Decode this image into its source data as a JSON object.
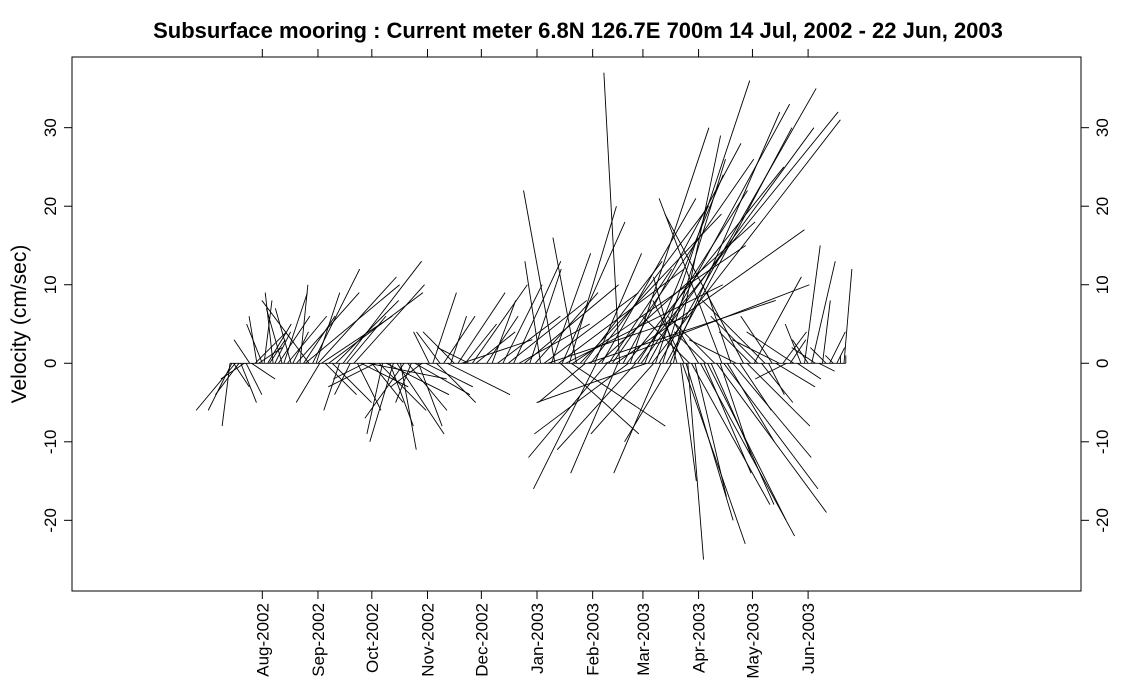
{
  "chart_data": {
    "type": "vector-stick-plot",
    "title": "Subsurface mooring : Current meter  6.8N 126.7E    700m   14 Jul, 2002 - 22 Jun, 2003",
    "xlabel": "",
    "ylabel": "Velocity (cm/sec)",
    "ylim": [
      -29,
      39
    ],
    "yticks": [
      -20,
      -10,
      0,
      10,
      20,
      30
    ],
    "ytick_labels": [
      "-20",
      "-10",
      "0",
      "10",
      "20",
      "30"
    ],
    "xlim": [
      "2002-04-17",
      "2003-10-31"
    ],
    "xticks": [
      "2002-08-01",
      "2002-09-01",
      "2002-10-01",
      "2002-11-01",
      "2002-12-01",
      "2003-01-01",
      "2003-02-01",
      "2003-03-01",
      "2003-04-01",
      "2003-05-01",
      "2003-06-01"
    ],
    "xtick_labels": [
      "Aug-2002",
      "Sep-2002",
      "Oct-2002",
      "Nov-2002",
      "Dec-2002",
      "Jan-2003",
      "Feb-2003",
      "Mar-2003",
      "Apr-2003",
      "May-2003",
      "Jun-2003"
    ],
    "grid": false,
    "sticks": [
      {
        "t": "2002-07-14",
        "u": -1,
        "v": -8
      },
      {
        "t": "2002-07-15",
        "u": -3,
        "v": -6
      },
      {
        "t": "2002-07-16",
        "u": 2,
        "v": -3
      },
      {
        "t": "2002-07-17",
        "u": -5,
        "v": -6
      },
      {
        "t": "2002-07-19",
        "u": -3,
        "v": -4
      },
      {
        "t": "2002-07-20",
        "u": 2,
        "v": -5
      },
      {
        "t": "2002-07-22",
        "u": -3,
        "v": -2
      },
      {
        "t": "2002-07-23",
        "u": 2,
        "v": -4
      },
      {
        "t": "2002-07-25",
        "u": -2,
        "v": 3
      },
      {
        "t": "2002-07-26",
        "u": 3,
        "v": -2
      },
      {
        "t": "2002-07-28",
        "u": 4,
        "v": 4
      },
      {
        "t": "2002-07-29",
        "u": -1,
        "v": 6
      },
      {
        "t": "2002-07-30",
        "u": 3,
        "v": 2
      },
      {
        "t": "2002-08-01",
        "u": -2,
        "v": 5
      },
      {
        "t": "2002-08-02",
        "u": 1,
        "v": 8
      },
      {
        "t": "2002-08-04",
        "u": 3,
        "v": 5
      },
      {
        "t": "2002-08-05",
        "u": 2,
        "v": 3
      },
      {
        "t": "2002-08-07",
        "u": -1,
        "v": 9
      },
      {
        "t": "2002-08-08",
        "u": 2,
        "v": 4
      },
      {
        "t": "2002-08-10",
        "u": 4,
        "v": 6
      },
      {
        "t": "2002-08-12",
        "u": -2,
        "v": 7
      },
      {
        "t": "2002-08-13",
        "u": 3,
        "v": 9
      },
      {
        "t": "2002-08-15",
        "u": 5,
        "v": 6
      },
      {
        "t": "2002-08-17",
        "u": -2,
        "v": 7
      },
      {
        "t": "2002-08-18",
        "u": 2,
        "v": 4
      },
      {
        "t": "2002-08-20",
        "u": 8,
        "v": 9
      },
      {
        "t": "2002-08-22",
        "u": 1,
        "v": 10
      },
      {
        "t": "2002-08-24",
        "u": 4,
        "v": 6
      },
      {
        "t": "2002-08-25",
        "u": 12,
        "v": 10
      },
      {
        "t": "2002-08-27",
        "u": -6,
        "v": 8
      },
      {
        "t": "2002-08-29",
        "u": 6,
        "v": 12
      },
      {
        "t": "2002-08-31",
        "u": 3,
        "v": 9
      },
      {
        "t": "2002-09-01",
        "u": 10,
        "v": 11
      },
      {
        "t": "2002-09-02",
        "u": -3,
        "v": -5
      },
      {
        "t": "2002-09-03",
        "u": 9,
        "v": 6
      },
      {
        "t": "2002-09-05",
        "u": 4,
        "v": -4
      },
      {
        "t": "2002-09-07",
        "u": 12,
        "v": 9
      },
      {
        "t": "2002-09-09",
        "u": 5,
        "v": -5
      },
      {
        "t": "2002-09-11",
        "u": 8,
        "v": 8
      },
      {
        "t": "2002-09-13",
        "u": -2,
        "v": -6
      },
      {
        "t": "2002-09-15",
        "u": 10,
        "v": 13
      },
      {
        "t": "2002-09-17",
        "u": 5,
        "v": 6
      },
      {
        "t": "2002-09-19",
        "u": -2,
        "v": -4
      },
      {
        "t": "2002-09-21",
        "u": 9,
        "v": 10
      },
      {
        "t": "2002-09-23",
        "u": 3,
        "v": -6
      },
      {
        "t": "2002-09-25",
        "u": 6,
        "v": -3
      },
      {
        "t": "2002-09-27",
        "u": -4,
        "v": -2
      },
      {
        "t": "2002-09-29",
        "u": 10,
        "v": -2
      },
      {
        "t": "2002-10-01",
        "u": 4,
        "v": -5
      },
      {
        "t": "2002-10-03",
        "u": -6,
        "v": -3
      },
      {
        "t": "2002-10-05",
        "u": 6,
        "v": -6
      },
      {
        "t": "2002-10-07",
        "u": -2,
        "v": -9
      },
      {
        "t": "2002-10-09",
        "u": 8,
        "v": -4
      },
      {
        "t": "2002-10-11",
        "u": 3,
        "v": -8
      },
      {
        "t": "2002-10-13",
        "u": -3,
        "v": -10
      },
      {
        "t": "2002-10-15",
        "u": 6,
        "v": -9
      },
      {
        "t": "2002-10-17",
        "u": 2,
        "v": -11
      },
      {
        "t": "2002-10-19",
        "u": -5,
        "v": -7
      },
      {
        "t": "2002-10-21",
        "u": 5,
        "v": -6
      },
      {
        "t": "2002-10-23",
        "u": -2,
        "v": -5
      },
      {
        "t": "2002-10-25",
        "u": 7,
        "v": -4
      },
      {
        "t": "2002-10-27",
        "u": 3,
        "v": -8
      },
      {
        "t": "2002-10-29",
        "u": -4,
        "v": -3
      },
      {
        "t": "2002-10-31",
        "u": 6,
        "v": -3
      },
      {
        "t": "2002-11-02",
        "u": -2,
        "v": 4
      },
      {
        "t": "2002-11-04",
        "u": 3,
        "v": 9
      },
      {
        "t": "2002-11-06",
        "u": 5,
        "v": -5
      },
      {
        "t": "2002-11-08",
        "u": -3,
        "v": 4
      },
      {
        "t": "2002-11-10",
        "u": 4,
        "v": 6
      },
      {
        "t": "2002-11-12",
        "u": 8,
        "v": -4
      },
      {
        "t": "2002-11-14",
        "u": 2,
        "v": 6
      },
      {
        "t": "2002-11-16",
        "u": -4,
        "v": 4
      },
      {
        "t": "2002-11-18",
        "u": 6,
        "v": 9
      },
      {
        "t": "2002-11-20",
        "u": 9,
        "v": 3
      },
      {
        "t": "2002-11-22",
        "u": 4,
        "v": 5
      },
      {
        "t": "2002-11-24",
        "u": -4,
        "v": 2
      },
      {
        "t": "2002-11-26",
        "u": 7,
        "v": 10
      },
      {
        "t": "2002-11-28",
        "u": 5,
        "v": 4
      },
      {
        "t": "2002-12-04",
        "u": 4,
        "v": 6
      },
      {
        "t": "2002-12-07",
        "u": 3,
        "v": 8
      },
      {
        "t": "2002-12-10",
        "u": 8,
        "v": 6
      },
      {
        "t": "2002-12-13",
        "u": 5,
        "v": 10
      },
      {
        "t": "2002-12-16",
        "u": 10,
        "v": 8
      },
      {
        "t": "2002-12-19",
        "u": 6,
        "v": 13
      },
      {
        "t": "2002-12-22",
        "u": 9,
        "v": 5
      },
      {
        "t": "2002-12-25",
        "u": 12,
        "v": 10
      },
      {
        "t": "2002-12-28",
        "u": 4,
        "v": 12
      },
      {
        "t": "2002-12-31",
        "u": 8,
        "v": 9
      },
      {
        "t": "2003-01-03",
        "u": -2,
        "v": 13
      },
      {
        "t": "2003-01-05",
        "u": 12,
        "v": 9
      },
      {
        "t": "2003-01-07",
        "u": 18,
        "v": 6
      },
      {
        "t": "2003-01-09",
        "u": 5,
        "v": 14
      },
      {
        "t": "2003-01-11",
        "u": -4,
        "v": 22
      },
      {
        "t": "2003-01-13",
        "u": 16,
        "v": 12
      },
      {
        "t": "2003-01-14",
        "u": 10,
        "v": -9
      },
      {
        "t": "2003-01-15",
        "u": 8,
        "v": 18
      },
      {
        "t": "2003-01-17",
        "u": 20,
        "v": 10
      },
      {
        "t": "2003-01-19",
        "u": 6,
        "v": 20
      },
      {
        "t": "2003-01-20",
        "u": 12,
        "v": -8
      },
      {
        "t": "2003-01-21",
        "u": 22,
        "v": 15
      },
      {
        "t": "2003-01-23",
        "u": -3,
        "v": 16
      },
      {
        "t": "2003-01-25",
        "u": 18,
        "v": 19
      },
      {
        "t": "2003-01-27",
        "u": 10,
        "v": 13
      },
      {
        "t": "2003-01-28",
        "u": -6,
        "v": -5
      },
      {
        "t": "2003-01-29",
        "u": 24,
        "v": 8
      },
      {
        "t": "2003-01-31",
        "u": 15,
        "v": 20
      },
      {
        "t": "2003-02-02",
        "u": 6,
        "v": 14
      },
      {
        "t": "2003-02-03",
        "u": -8,
        "v": -16
      },
      {
        "t": "2003-02-04",
        "u": 20,
        "v": 18
      },
      {
        "t": "2003-02-06",
        "u": 12,
        "v": 21
      },
      {
        "t": "2003-02-08",
        "u": 26,
        "v": 10
      },
      {
        "t": "2003-02-09",
        "u": -10,
        "v": -12
      },
      {
        "t": "2003-02-10",
        "u": 8,
        "v": 12
      },
      {
        "t": "2003-02-12",
        "u": 18,
        "v": 26
      },
      {
        "t": "2003-02-14",
        "u": 24,
        "v": 17
      },
      {
        "t": "2003-02-15",
        "u": -6,
        "v": -14
      },
      {
        "t": "2003-02-16",
        "u": -2,
        "v": 37
      },
      {
        "t": "2003-02-18",
        "u": 15,
        "v": 28
      },
      {
        "t": "2003-02-20",
        "u": 20,
        "v": 25
      },
      {
        "t": "2003-02-21",
        "u": -12,
        "v": -9
      },
      {
        "t": "2003-02-22",
        "u": 10,
        "v": 30
      },
      {
        "t": "2003-02-24",
        "u": 26,
        "v": 32
      },
      {
        "t": "2003-02-25",
        "u": -10,
        "v": -11
      },
      {
        "t": "2003-02-26",
        "u": 14,
        "v": 22
      },
      {
        "t": "2003-02-28",
        "u": 22,
        "v": 30
      },
      {
        "t": "2003-03-02",
        "u": 10,
        "v": 24
      },
      {
        "t": "2003-03-03",
        "u": -14,
        "v": -5
      },
      {
        "t": "2003-03-04",
        "u": 18,
        "v": 33
      },
      {
        "t": "2003-03-06",
        "u": 24,
        "v": 31
      },
      {
        "t": "2003-03-07",
        "u": -8,
        "v": -9
      },
      {
        "t": "2003-03-08",
        "u": 12,
        "v": 36
      },
      {
        "t": "2003-03-10",
        "u": 20,
        "v": 35
      },
      {
        "t": "2003-03-11",
        "u": -6,
        "v": -14
      },
      {
        "t": "2003-03-12",
        "u": 8,
        "v": 26
      },
      {
        "t": "2003-03-14",
        "u": 16,
        "v": 30
      },
      {
        "t": "2003-03-16",
        "u": 14,
        "v": 32
      },
      {
        "t": "2003-03-17",
        "u": -6,
        "v": -10
      },
      {
        "t": "2003-03-18",
        "u": 6,
        "v": 29
      },
      {
        "t": "2003-03-20",
        "u": -3,
        "v": 11
      },
      {
        "t": "2003-03-22",
        "u": 2,
        "v": -15
      },
      {
        "t": "2003-03-23",
        "u": 8,
        "v": -23
      },
      {
        "t": "2003-03-24",
        "u": -4,
        "v": 8
      },
      {
        "t": "2003-03-25",
        "u": 6,
        "v": -20
      },
      {
        "t": "2003-03-26",
        "u": 2,
        "v": -25
      },
      {
        "t": "2003-03-27",
        "u": -6,
        "v": 6
      },
      {
        "t": "2003-03-28",
        "u": 10,
        "v": -18
      },
      {
        "t": "2003-03-30",
        "u": 4,
        "v": -17
      },
      {
        "t": "2003-04-01",
        "u": -3,
        "v": 5
      },
      {
        "t": "2003-04-02",
        "u": 12,
        "v": -22
      },
      {
        "t": "2003-04-04",
        "u": 6,
        "v": -14
      },
      {
        "t": "2003-04-05",
        "u": -4,
        "v": 4
      },
      {
        "t": "2003-04-06",
        "u": 10,
        "v": -20
      },
      {
        "t": "2003-04-08",
        "u": 8,
        "v": -18
      },
      {
        "t": "2003-04-10",
        "u": -6,
        "v": 6
      },
      {
        "t": "2003-04-11",
        "u": 14,
        "v": -19
      },
      {
        "t": "2003-04-13",
        "u": 4,
        "v": -12
      },
      {
        "t": "2003-04-14",
        "u": -8,
        "v": 21
      },
      {
        "t": "2003-04-15",
        "u": 12,
        "v": -16
      },
      {
        "t": "2003-04-17",
        "u": 6,
        "v": -10
      },
      {
        "t": "2003-04-19",
        "u": -3,
        "v": 9
      },
      {
        "t": "2003-04-20",
        "u": 10,
        "v": -12
      },
      {
        "t": "2003-04-22",
        "u": -6,
        "v": 3
      },
      {
        "t": "2003-04-24",
        "u": 4,
        "v": -6
      },
      {
        "t": "2003-04-26",
        "u": -10,
        "v": 19
      },
      {
        "t": "2003-04-28",
        "u": 8,
        "v": -8
      },
      {
        "t": "2003-04-30",
        "u": -4,
        "v": 4
      },
      {
        "t": "2003-05-02",
        "u": 6,
        "v": 11
      },
      {
        "t": "2003-05-04",
        "u": -6,
        "v": 6
      },
      {
        "t": "2003-05-06",
        "u": 4,
        "v": -5
      },
      {
        "t": "2003-05-08",
        "u": -8,
        "v": 8
      },
      {
        "t": "2003-05-10",
        "u": 2,
        "v": -4
      },
      {
        "t": "2003-05-12",
        "u": -4,
        "v": 6
      },
      {
        "t": "2003-05-14",
        "u": 5,
        "v": -3
      },
      {
        "t": "2003-05-16",
        "u": -6,
        "v": 3
      },
      {
        "t": "2003-05-18",
        "u": 3,
        "v": 4
      },
      {
        "t": "2003-05-20",
        "u": -4,
        "v": -2
      },
      {
        "t": "2003-05-22",
        "u": 2,
        "v": 3
      },
      {
        "t": "2003-05-24",
        "u": -6,
        "v": 4
      },
      {
        "t": "2003-05-26",
        "u": 3,
        "v": -2
      },
      {
        "t": "2003-05-28",
        "u": -2,
        "v": 5
      },
      {
        "t": "2003-05-30",
        "u": 2,
        "v": 15
      },
      {
        "t": "2003-06-01",
        "u": -2,
        "v": 3
      },
      {
        "t": "2003-06-03",
        "u": 3,
        "v": 13
      },
      {
        "t": "2003-06-05",
        "u": -3,
        "v": 2
      },
      {
        "t": "2003-06-07",
        "u": 2,
        "v": -1
      },
      {
        "t": "2003-06-09",
        "u": 1,
        "v": 8
      },
      {
        "t": "2003-06-11",
        "u": -2,
        "v": 2
      },
      {
        "t": "2003-06-13",
        "u": 2,
        "v": 4
      },
      {
        "t": "2003-06-15",
        "u": -1,
        "v": 1
      },
      {
        "t": "2003-06-17",
        "u": 1,
        "v": 2
      },
      {
        "t": "2003-06-19",
        "u": 0,
        "v": 1
      },
      {
        "t": "2003-06-21",
        "u": 1,
        "v": 12
      },
      {
        "t": "2003-06-22",
        "u": 0,
        "v": 1
      }
    ]
  }
}
